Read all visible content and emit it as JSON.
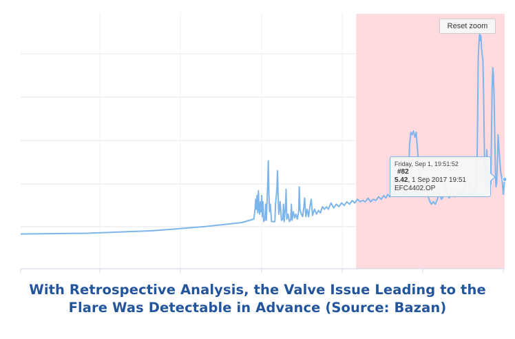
{
  "reset_zoom_label": "Reset zoom",
  "tooltip": {
    "date": "Friday, Sep 1, 19:51:52",
    "point_id": "#82",
    "value": "5.42",
    "value_time": ", 1 Sep 2017 19:51",
    "series": "EFC4402.OP"
  },
  "caption": {
    "line1": "With Retrospective Analysis, the Valve Issue Leading to the",
    "line2": "Flare Was Detectable in Advance (Source: Bazan)"
  },
  "colors": {
    "series": "#7cb5ec",
    "highlight_band": "#ffdbe0",
    "caption": "#22559c"
  },
  "chart_data": {
    "type": "line",
    "title": "",
    "xlabel": "",
    "ylabel": "",
    "grid": true,
    "legend": "none",
    "series": [
      {
        "name": "EFC4402.OP",
        "points": [
          [
            0,
            1.0
          ],
          [
            100,
            1.03
          ],
          [
            200,
            1.13
          ],
          [
            280,
            1.3
          ],
          [
            335,
            1.46
          ],
          [
            353,
            1.6
          ],
          [
            355,
            2.0
          ],
          [
            356,
            2.4
          ],
          [
            357,
            2.0
          ],
          [
            358,
            2.55
          ],
          [
            359,
            1.85
          ],
          [
            360,
            2.75
          ],
          [
            361,
            2.0
          ],
          [
            362,
            1.8
          ],
          [
            363,
            2.3
          ],
          [
            364,
            1.9
          ],
          [
            365,
            2.55
          ],
          [
            366,
            1.7
          ],
          [
            367,
            2.3
          ],
          [
            368,
            1.5
          ],
          [
            370,
            1.6
          ],
          [
            371,
            2.2
          ],
          [
            372,
            1.55
          ],
          [
            374,
            2.9
          ],
          [
            375,
            3.95
          ],
          [
            376,
            2.6
          ],
          [
            377,
            1.9
          ],
          [
            378,
            2.2
          ],
          [
            380,
            1.5
          ],
          [
            383,
            1.5
          ],
          [
            385,
            1.5
          ],
          [
            386,
            2.2
          ],
          [
            388,
            2.8
          ],
          [
            389,
            3.55
          ],
          [
            390,
            2.5
          ],
          [
            391,
            1.8
          ],
          [
            393,
            2.3
          ],
          [
            395,
            1.55
          ],
          [
            397,
            1.6
          ],
          [
            398,
            2.2
          ],
          [
            399,
            1.5
          ],
          [
            401,
            2.1
          ],
          [
            402,
            2.8
          ],
          [
            403,
            1.6
          ],
          [
            405,
            1.8
          ],
          [
            407,
            1.5
          ],
          [
            409,
            1.6
          ],
          [
            410,
            2.2
          ],
          [
            411,
            1.55
          ],
          [
            413,
            1.9
          ],
          [
            415,
            1.65
          ],
          [
            417,
            1.8
          ],
          [
            419,
            1.6
          ],
          [
            421,
            1.9
          ],
          [
            422,
            2.9
          ],
          [
            423,
            2.0
          ],
          [
            425,
            1.8
          ],
          [
            427,
            1.7
          ],
          [
            429,
            2.1
          ],
          [
            430,
            2.45
          ],
          [
            432,
            1.7
          ],
          [
            434,
            2.0
          ],
          [
            436,
            1.7
          ],
          [
            438,
            2.1
          ],
          [
            440,
            2.4
          ],
          [
            442,
            1.75
          ],
          [
            445,
            2.0
          ],
          [
            448,
            1.8
          ],
          [
            451,
            1.95
          ],
          [
            454,
            1.85
          ],
          [
            457,
            2.1
          ],
          [
            460,
            2.0
          ],
          [
            463,
            2.1
          ],
          [
            466,
            2.0
          ],
          [
            470,
            2.25
          ],
          [
            474,
            2.05
          ],
          [
            478,
            2.2
          ],
          [
            482,
            2.1
          ],
          [
            486,
            2.25
          ],
          [
            490,
            2.15
          ],
          [
            494,
            2.3
          ],
          [
            498,
            2.2
          ],
          [
            502,
            2.35
          ],
          [
            506,
            2.25
          ],
          [
            510,
            2.4
          ],
          [
            514,
            2.3
          ],
          [
            518,
            2.35
          ],
          [
            522,
            2.3
          ],
          [
            526,
            2.45
          ],
          [
            530,
            2.3
          ],
          [
            534,
            2.4
          ],
          [
            538,
            2.35
          ],
          [
            542,
            2.5
          ],
          [
            546,
            2.4
          ],
          [
            550,
            2.55
          ],
          [
            553,
            2.45
          ],
          [
            556,
            2.6
          ],
          [
            559,
            2.5
          ],
          [
            562,
            2.7
          ],
          [
            565,
            2.6
          ],
          [
            568,
            2.85
          ],
          [
            570,
            3.3
          ],
          [
            572,
            2.7
          ],
          [
            575,
            3.1
          ],
          [
            577,
            3.7
          ],
          [
            579,
            2.9
          ],
          [
            581,
            2.6
          ],
          [
            583,
            3.0
          ],
          [
            585,
            2.8
          ],
          [
            587,
            3.3
          ],
          [
            588,
            3.8
          ],
          [
            589,
            4.6
          ],
          [
            591,
            5.1
          ],
          [
            593,
            5.0
          ],
          [
            595,
            5.15
          ],
          [
            597,
            4.9
          ],
          [
            599,
            5.1
          ],
          [
            601,
            4.4
          ],
          [
            603,
            3.7
          ],
          [
            605,
            3.1
          ],
          [
            607,
            2.8
          ],
          [
            609,
            3.1
          ],
          [
            612,
            2.9
          ],
          [
            614,
            3.1
          ],
          [
            616,
            2.6
          ],
          [
            619,
            2.35
          ],
          [
            622,
            2.2
          ],
          [
            625,
            2.3
          ],
          [
            628,
            2.2
          ],
          [
            631,
            2.4
          ],
          [
            634,
            2.7
          ],
          [
            637,
            2.4
          ],
          [
            640,
            2.5
          ],
          [
            643,
            3.0
          ],
          [
            646,
            2.6
          ],
          [
            649,
            2.45
          ],
          [
            652,
            2.7
          ],
          [
            655,
            2.6
          ],
          [
            658,
            2.5
          ],
          [
            661,
            2.7
          ],
          [
            664,
            2.55
          ],
          [
            667,
            2.7
          ],
          [
            670,
            2.6
          ],
          [
            673,
            2.9
          ],
          [
            676,
            3.2
          ],
          [
            679,
            3.0
          ],
          [
            681,
            2.7
          ],
          [
            684,
            2.55
          ],
          [
            687,
            2.6
          ],
          [
            689,
            2.8
          ],
          [
            691,
            3.5
          ],
          [
            692,
            5.6
          ],
          [
            693,
            8.1
          ],
          [
            694,
            8.7
          ],
          [
            695,
            9.1
          ],
          [
            696,
            8.8
          ],
          [
            697,
            9.0
          ],
          [
            698,
            8.5
          ],
          [
            699,
            8.2
          ],
          [
            700,
            8.0
          ],
          [
            701,
            6.8
          ],
          [
            702,
            4.8
          ],
          [
            703,
            3.4
          ],
          [
            704,
            3.0
          ],
          [
            705,
            3.8
          ],
          [
            706,
            4.4
          ],
          [
            707,
            3.2
          ],
          [
            708,
            2.8
          ],
          [
            709,
            2.9
          ],
          [
            710,
            3.6
          ],
          [
            711,
            3.3
          ],
          [
            712,
            3.0
          ],
          [
            713,
            4.9
          ],
          [
            714,
            6.9
          ],
          [
            715,
            7.7
          ],
          [
            716,
            7.4
          ],
          [
            717,
            6.5
          ],
          [
            718,
            5.0
          ],
          [
            719,
            3.4
          ],
          [
            720,
            2.9
          ],
          [
            721,
            3.1
          ],
          [
            722,
            4.0
          ],
          [
            723,
            5.0
          ],
          [
            725,
            4.2
          ],
          [
            727,
            3.5
          ],
          [
            729,
            3.2
          ],
          [
            731,
            2.6
          ],
          [
            733,
            3.2
          ]
        ]
      }
    ],
    "highlight_band": {
      "from": 508,
      "to": 733
    }
  }
}
